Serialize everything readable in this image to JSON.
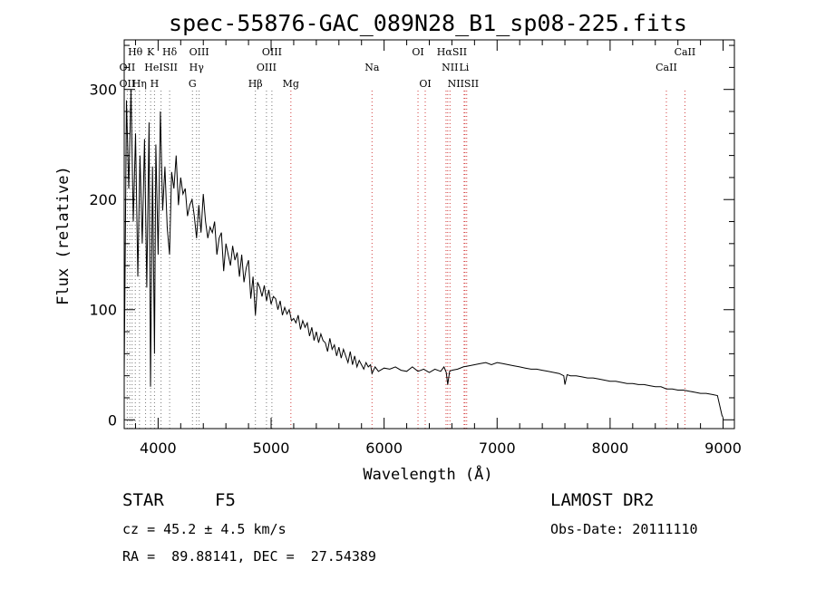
{
  "chart_data": {
    "type": "line",
    "title": "spec-55876-GAC_089N28_B1_sp08-225.fits",
    "xlabel": "Wavelength (Å)",
    "ylabel": "Flux (relative)",
    "xlim": [
      3700,
      9100
    ],
    "ylim": [
      -8,
      345
    ],
    "xticks": [
      4000,
      5000,
      6000,
      7000,
      8000,
      9000
    ],
    "yticks": [
      0,
      100,
      200,
      300
    ],
    "series": [
      {
        "color": "#000000",
        "x": [
          3700,
          3720,
          3740,
          3760,
          3780,
          3800,
          3820,
          3840,
          3860,
          3880,
          3900,
          3920,
          3933,
          3950,
          3968,
          3980,
          4000,
          4020,
          4040,
          4060,
          4080,
          4101,
          4120,
          4140,
          4160,
          4180,
          4200,
          4220,
          4240,
          4260,
          4280,
          4300,
          4320,
          4340,
          4360,
          4380,
          4400,
          4420,
          4440,
          4460,
          4480,
          4500,
          4520,
          4540,
          4560,
          4580,
          4600,
          4620,
          4640,
          4660,
          4680,
          4700,
          4720,
          4740,
          4760,
          4780,
          4800,
          4820,
          4840,
          4861,
          4880,
          4900,
          4920,
          4940,
          4960,
          4980,
          5000,
          5020,
          5040,
          5060,
          5080,
          5100,
          5120,
          5140,
          5160,
          5180,
          5200,
          5220,
          5240,
          5260,
          5280,
          5300,
          5320,
          5340,
          5360,
          5380,
          5400,
          5420,
          5440,
          5460,
          5480,
          5500,
          5520,
          5540,
          5560,
          5580,
          5600,
          5620,
          5640,
          5660,
          5680,
          5700,
          5720,
          5740,
          5760,
          5780,
          5800,
          5820,
          5840,
          5860,
          5880,
          5893,
          5920,
          5950,
          6000,
          6050,
          6100,
          6150,
          6200,
          6250,
          6300,
          6350,
          6400,
          6450,
          6500,
          6530,
          6550,
          6563,
          6580,
          6600,
          6650,
          6700,
          6750,
          6800,
          6850,
          6900,
          6950,
          7000,
          7050,
          7100,
          7150,
          7200,
          7250,
          7300,
          7350,
          7400,
          7450,
          7500,
          7550,
          7590,
          7600,
          7620,
          7650,
          7700,
          7750,
          7800,
          7850,
          7900,
          7950,
          8000,
          8050,
          8100,
          8150,
          8200,
          8250,
          8300,
          8350,
          8400,
          8450,
          8498,
          8550,
          8600,
          8650,
          8700,
          8750,
          8800,
          8850,
          8900,
          8950,
          8990,
          9000
        ],
        "y": [
          40,
          290,
          210,
          300,
          180,
          260,
          130,
          240,
          160,
          255,
          120,
          270,
          30,
          230,
          60,
          250,
          150,
          280,
          190,
          230,
          175,
          150,
          225,
          210,
          240,
          195,
          220,
          205,
          210,
          185,
          195,
          200,
          185,
          165,
          195,
          170,
          205,
          180,
          165,
          175,
          170,
          180,
          150,
          165,
          170,
          135,
          160,
          150,
          140,
          158,
          145,
          152,
          130,
          150,
          125,
          138,
          145,
          110,
          130,
          95,
          125,
          120,
          112,
          122,
          108,
          118,
          105,
          112,
          110,
          100,
          108,
          95,
          102,
          96,
          100,
          90,
          92,
          88,
          95,
          82,
          90,
          84,
          88,
          76,
          84,
          72,
          80,
          70,
          78,
          72,
          70,
          62,
          74,
          64,
          68,
          58,
          66,
          56,
          64,
          58,
          52,
          62,
          50,
          58,
          48,
          54,
          50,
          46,
          52,
          48,
          50,
          42,
          48,
          44,
          47,
          46,
          48,
          45,
          44,
          48,
          44,
          46,
          43,
          46,
          44,
          48,
          43,
          32,
          44,
          45,
          46,
          48,
          49,
          50,
          51,
          52,
          50,
          52,
          51,
          50,
          49,
          48,
          47,
          46,
          46,
          45,
          44,
          43,
          42,
          40,
          32,
          41,
          40,
          40,
          39,
          38,
          38,
          37,
          36,
          35,
          35,
          34,
          33,
          33,
          32,
          32,
          31,
          30,
          30,
          28,
          28,
          27,
          27,
          26,
          25,
          24,
          24,
          23,
          22,
          4,
          2
        ]
      }
    ],
    "spectral_lines": [
      {
        "label": "Hθ",
        "x": 3798,
        "row": 0
      },
      {
        "label": "K",
        "x": 3934,
        "row": 0
      },
      {
        "label": "Hδ",
        "x": 4102,
        "row": 0
      },
      {
        "label": "OIII",
        "x": 4363,
        "row": 0
      },
      {
        "label": "OIII",
        "x": 5007,
        "row": 0
      },
      {
        "label": "OI",
        "x": 6300,
        "row": 0
      },
      {
        "label": "HαSII",
        "x": 6600,
        "row": 0
      },
      {
        "label": "CaII",
        "x": 8662,
        "row": 0
      },
      {
        "label": "OII",
        "x": 3727,
        "row": 1
      },
      {
        "label": "HeISII",
        "x": 4026,
        "row": 1
      },
      {
        "label": "Hγ",
        "x": 4340,
        "row": 1
      },
      {
        "label": "OIII",
        "x": 4959,
        "row": 1
      },
      {
        "label": "NII",
        "x": 6583,
        "row": 1
      },
      {
        "label": "Li",
        "x": 6708,
        "row": 1
      },
      {
        "label": "CaII",
        "x": 8498,
        "row": 1
      },
      {
        "label": "OII",
        "x": 3727,
        "row": 2
      },
      {
        "label": "Hη",
        "x": 3835,
        "row": 2
      },
      {
        "label": "H",
        "x": 3968,
        "row": 2
      },
      {
        "label": "G",
        "x": 4304,
        "row": 2
      },
      {
        "label": "Hβ",
        "x": 4861,
        "row": 2
      },
      {
        "label": "Mg",
        "x": 5175,
        "row": 2
      },
      {
        "label": "Na",
        "x": 5893,
        "row": 1
      },
      {
        "label": "OI",
        "x": 6364,
        "row": 2
      },
      {
        "label": "NIISII",
        "x": 6700,
        "row": 2
      }
    ],
    "grey_line_positions": [
      3727,
      3750,
      3770,
      3798,
      3835,
      3889,
      3934,
      3968,
      4026,
      4102,
      4304,
      4340,
      4363,
      4861,
      4959,
      5007
    ],
    "red_line_positions": [
      5175,
      5893,
      6300,
      6364,
      6548,
      6563,
      6583,
      6708,
      6716,
      6731,
      8498,
      8662
    ]
  },
  "info": {
    "object_class": "STAR",
    "subclass": "F5",
    "survey": "LAMOST DR2",
    "cz": "cz = 45.2 ± 4.5 km/s",
    "obs_date": "Obs-Date: 20111110",
    "coords": "RA =  89.88141, DEC =  27.54389"
  }
}
